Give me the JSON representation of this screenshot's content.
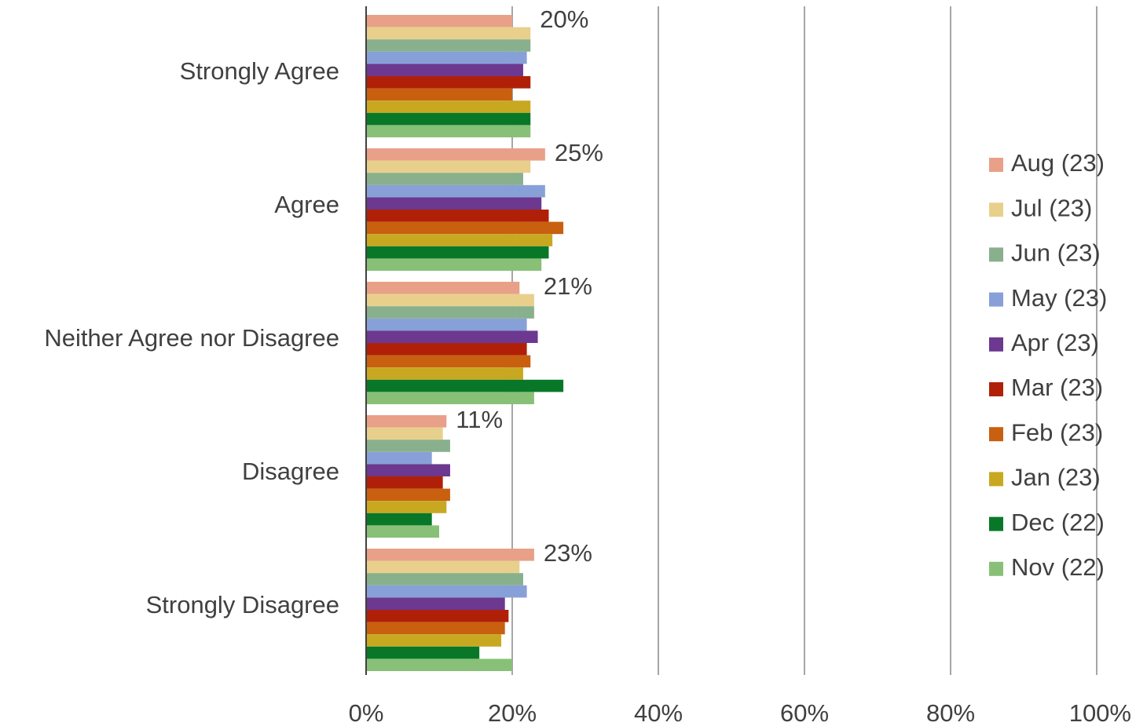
{
  "chart_data": {
    "type": "bar",
    "orientation": "horizontal",
    "categories": [
      "Strongly Agree",
      "Agree",
      "Neither Agree nor Disagree",
      "Disagree",
      "Strongly Disagree"
    ],
    "x_ticks": [
      "0%",
      "20%",
      "40%",
      "60%",
      "80%",
      "100%"
    ],
    "xlim": [
      0,
      100
    ],
    "grid": true,
    "legend_position": "right",
    "series": [
      {
        "name": "Aug (23)",
        "color": "#E8A088",
        "values": [
          20,
          24.5,
          21,
          11,
          23
        ]
      },
      {
        "name": "Jul (23)",
        "color": "#E8D08C",
        "values": [
          22.5,
          22.5,
          23,
          10.5,
          21
        ]
      },
      {
        "name": "Jun (23)",
        "color": "#88B08C",
        "values": [
          22.5,
          21.5,
          23,
          11.5,
          21.5
        ]
      },
      {
        "name": "May (23)",
        "color": "#88A0D8",
        "values": [
          22,
          24.5,
          22,
          9,
          22
        ]
      },
      {
        "name": "Apr (23)",
        "color": "#6C3890",
        "values": [
          21.5,
          24,
          23.5,
          11.5,
          19
        ]
      },
      {
        "name": "Mar (23)",
        "color": "#B02008",
        "values": [
          22.5,
          25,
          22,
          10.5,
          19.5
        ]
      },
      {
        "name": "Feb (23)",
        "color": "#C86010",
        "values": [
          20,
          27,
          22.5,
          11.5,
          19
        ]
      },
      {
        "name": "Jan (23)",
        "color": "#C8A820",
        "values": [
          22.5,
          25.5,
          21.5,
          11,
          18.5
        ]
      },
      {
        "name": "Dec (22)",
        "color": "#087828",
        "values": [
          22.5,
          25,
          27,
          9,
          15.5
        ]
      },
      {
        "name": "Nov (22)",
        "color": "#88C078",
        "values": [
          22.5,
          24,
          23,
          10,
          20
        ]
      }
    ],
    "data_labels": [
      "20%",
      "25%",
      "21%",
      "11%",
      "23%"
    ]
  }
}
